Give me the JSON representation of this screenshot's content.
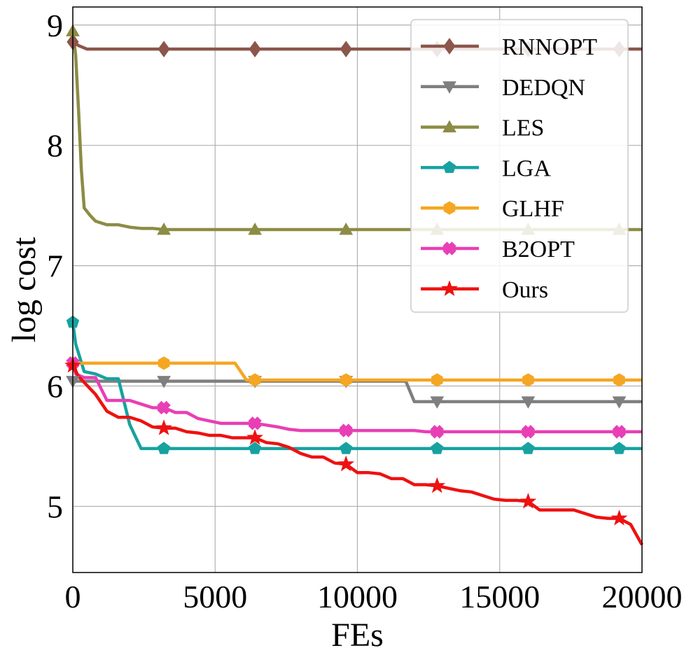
{
  "chart_data": {
    "type": "line",
    "title": "",
    "xlabel": "FEs",
    "ylabel": "log cost",
    "xlim": [
      0,
      20000
    ],
    "ylim": [
      4.45,
      9.15
    ],
    "xticks": [
      0,
      5000,
      10000,
      15000,
      20000
    ],
    "xtick_labels": [
      "0",
      "5000",
      "10000",
      "15000",
      "20000"
    ],
    "yticks": [
      5,
      6,
      7,
      8,
      9
    ],
    "ytick_labels": [
      "5",
      "6",
      "7",
      "8",
      "9"
    ],
    "grid": true,
    "legend_position": "top-right",
    "marker_x": [
      0,
      3200,
      6400,
      9600,
      12800,
      16000,
      19200
    ],
    "series": [
      {
        "name": "RNNOPT",
        "color": "#8c564b",
        "marker": "diamond",
        "x": [
          0,
          200,
          500,
          1000,
          20000
        ],
        "y": [
          8.86,
          8.83,
          8.8,
          8.8,
          8.8
        ]
      },
      {
        "name": "DEDQN",
        "color": "#7f7f7f",
        "marker": "triangle-down",
        "x": [
          0,
          11700,
          12000,
          20000
        ],
        "y": [
          6.04,
          6.04,
          5.87,
          5.87
        ]
      },
      {
        "name": "LES",
        "color": "#8c8c45",
        "marker": "triangle-up",
        "x": [
          0,
          100,
          200,
          300,
          400,
          600,
          800,
          1200,
          1600,
          2000,
          2400,
          2800,
          3200,
          20000
        ],
        "y": [
          8.95,
          8.75,
          8.3,
          7.8,
          7.48,
          7.42,
          7.37,
          7.34,
          7.34,
          7.32,
          7.31,
          7.31,
          7.3,
          7.3
        ],
        "marker_y": [
          8.95,
          7.3,
          7.3,
          7.3,
          7.3,
          7.3,
          7.3
        ]
      },
      {
        "name": "LGA",
        "color": "#17a2a0",
        "marker": "pentagon",
        "x": [
          0,
          100,
          400,
          800,
          1200,
          1600,
          2000,
          2400,
          20000
        ],
        "y": [
          6.53,
          6.35,
          6.12,
          6.1,
          6.06,
          6.06,
          5.68,
          5.48,
          5.48
        ],
        "marker_y": [
          6.53,
          5.48,
          5.48,
          5.48,
          5.48,
          5.48,
          5.48
        ]
      },
      {
        "name": "GLHF",
        "color": "#f5a623",
        "marker": "hexagon",
        "x": [
          0,
          5700,
          5900,
          6100,
          20000
        ],
        "y": [
          6.19,
          6.19,
          6.12,
          6.05,
          6.05
        ]
      },
      {
        "name": "B2OPT",
        "color": "#e83fb5",
        "marker": "x-filled",
        "x": [
          0,
          100,
          400,
          800,
          1200,
          1600,
          2000,
          2400,
          2800,
          3200,
          3600,
          4000,
          4400,
          4800,
          5200,
          6400,
          7200,
          7600,
          8000,
          12000,
          12400,
          20000
        ],
        "y": [
          6.19,
          6.1,
          6.07,
          6.07,
          5.88,
          5.88,
          5.88,
          5.85,
          5.82,
          5.82,
          5.78,
          5.78,
          5.73,
          5.71,
          5.69,
          5.69,
          5.66,
          5.64,
          5.63,
          5.63,
          5.62,
          5.62
        ],
        "marker_y": [
          6.19,
          5.82,
          5.69,
          5.63,
          5.62,
          5.62,
          5.62
        ]
      },
      {
        "name": "Ours",
        "color": "#ee1111",
        "marker": "star",
        "x": [
          0,
          200,
          400,
          800,
          1200,
          1600,
          2000,
          2400,
          2800,
          3200,
          3600,
          4000,
          4400,
          4800,
          5200,
          5600,
          6000,
          6400,
          6800,
          7200,
          7600,
          8000,
          8400,
          8800,
          9200,
          9600,
          10000,
          10400,
          10800,
          11200,
          11600,
          12000,
          12400,
          12800,
          13200,
          13600,
          14000,
          14400,
          14800,
          15200,
          15600,
          16000,
          16400,
          16800,
          17200,
          17600,
          18000,
          18400,
          18800,
          19200,
          19600,
          20000
        ],
        "y": [
          6.17,
          6.08,
          6.03,
          5.93,
          5.79,
          5.74,
          5.74,
          5.71,
          5.66,
          5.65,
          5.65,
          5.62,
          5.61,
          5.59,
          5.59,
          5.57,
          5.57,
          5.57,
          5.53,
          5.52,
          5.49,
          5.44,
          5.41,
          5.41,
          5.36,
          5.35,
          5.28,
          5.28,
          5.27,
          5.23,
          5.23,
          5.18,
          5.18,
          5.17,
          5.15,
          5.13,
          5.12,
          5.09,
          5.06,
          5.05,
          5.05,
          5.04,
          4.97,
          4.97,
          4.97,
          4.97,
          4.94,
          4.91,
          4.9,
          4.9,
          4.85,
          4.68
        ],
        "marker_y": [
          6.17,
          5.65,
          5.57,
          5.35,
          5.17,
          5.04,
          4.9
        ]
      }
    ]
  }
}
